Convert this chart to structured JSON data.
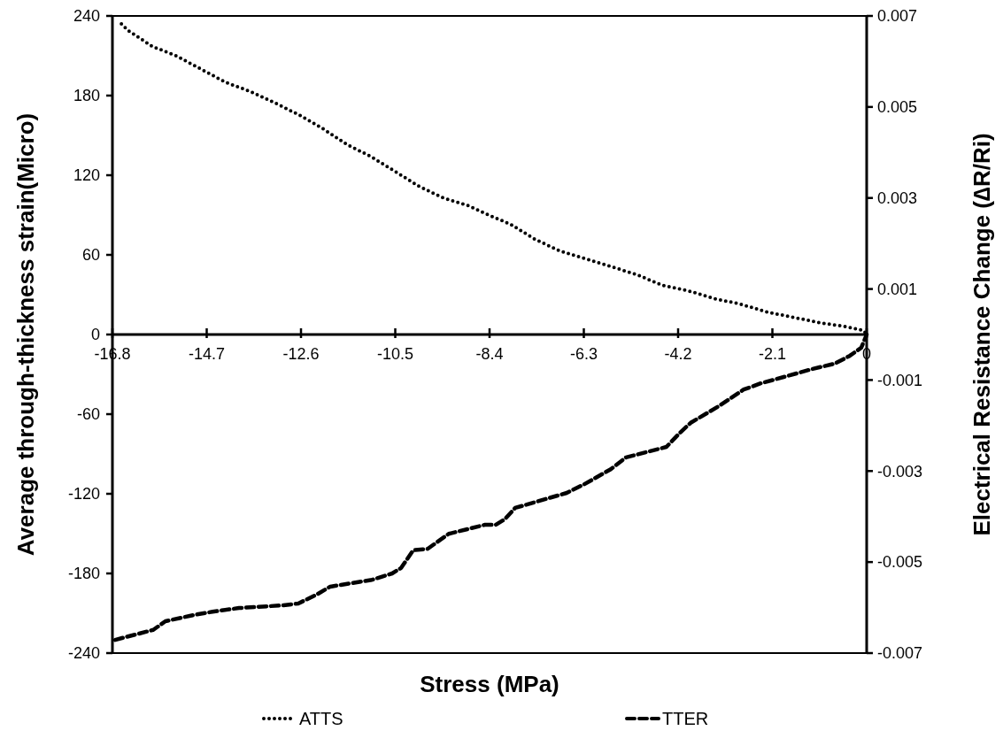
{
  "chart_data": {
    "type": "line",
    "xlabel": "Stress (MPa)",
    "ylabel": "Average through-thickness strain(Micro)",
    "y2label": "Electrical Resistance Change (∆R/Ri)",
    "xlim": [
      -16.8,
      0
    ],
    "xticks": [
      -16.8,
      -14.7,
      -12.6,
      -10.5,
      -8.4,
      -6.3,
      -4.2,
      -2.1,
      0
    ],
    "ylim": [
      -240,
      240
    ],
    "yticks": [
      -240,
      -180,
      -120,
      -60,
      0,
      60,
      120,
      180,
      240
    ],
    "y2lim": [
      -0.007,
      0.007
    ],
    "y2ticks": [
      -0.007,
      -0.005,
      -0.003,
      -0.001,
      0.001,
      0.003,
      0.005,
      0.007
    ],
    "legend": "bottom",
    "grid": false,
    "marker": "none",
    "series": [
      {
        "name": "ATTS",
        "color": "#000000",
        "line_style": "dotted",
        "x": [
          -16.6,
          -16.45,
          -15.91,
          -15.38,
          -14.83,
          -14.28,
          -13.72,
          -13.15,
          -12.62,
          -12.11,
          -11.57,
          -11.04,
          -10.51,
          -9.99,
          -9.44,
          -8.87,
          -8.49,
          -7.93,
          -7.4,
          -6.84,
          -6.25,
          -5.68,
          -5.11,
          -4.55,
          -3.98,
          -3.39,
          -2.82,
          -2.23,
          -1.64,
          -1.07,
          -0.47,
          -0.07,
          0
        ],
        "values": [
          234,
          229,
          217,
          210,
          200,
          190,
          183,
          174,
          165,
          155,
          143,
          134,
          123,
          112,
          103,
          97,
          91,
          83,
          72,
          63,
          57,
          51,
          45,
          37,
          33,
          27,
          23,
          17,
          13,
          9,
          6,
          3,
          0
        ]
      },
      {
        "name": "TTER",
        "color": "#000000",
        "line_style": "dashed",
        "axis": "y2",
        "x": [
          -16.74,
          -15.89,
          -15.62,
          -14.97,
          -14.57,
          -13.98,
          -12.99,
          -12.66,
          -12.26,
          -11.95,
          -11.02,
          -10.57,
          -10.37,
          -10.1,
          -9.78,
          -9.31,
          -8.5,
          -8.26,
          -8.06,
          -7.83,
          -6.68,
          -6.29,
          -5.7,
          -5.36,
          -4.46,
          -4.18,
          -3.92,
          -3.27,
          -2.74,
          -2.35,
          -1.76,
          -1.22,
          -0.71,
          -0.38,
          -0.12,
          0
        ],
        "values": [
          -0.00671,
          -0.00649,
          -0.0063,
          -0.00616,
          -0.00609,
          -0.00601,
          -0.00595,
          -0.00591,
          -0.00572,
          -0.00554,
          -0.00539,
          -0.00525,
          -0.00513,
          -0.00474,
          -0.00471,
          -0.00438,
          -0.00418,
          -0.00418,
          -0.00406,
          -0.00381,
          -0.00348,
          -0.00329,
          -0.00296,
          -0.0027,
          -0.00247,
          -0.00218,
          -0.00194,
          -0.00156,
          -0.00121,
          -0.00107,
          -0.00091,
          -0.00076,
          -0.00064,
          -0.00047,
          -0.00029,
          0
        ]
      }
    ]
  }
}
